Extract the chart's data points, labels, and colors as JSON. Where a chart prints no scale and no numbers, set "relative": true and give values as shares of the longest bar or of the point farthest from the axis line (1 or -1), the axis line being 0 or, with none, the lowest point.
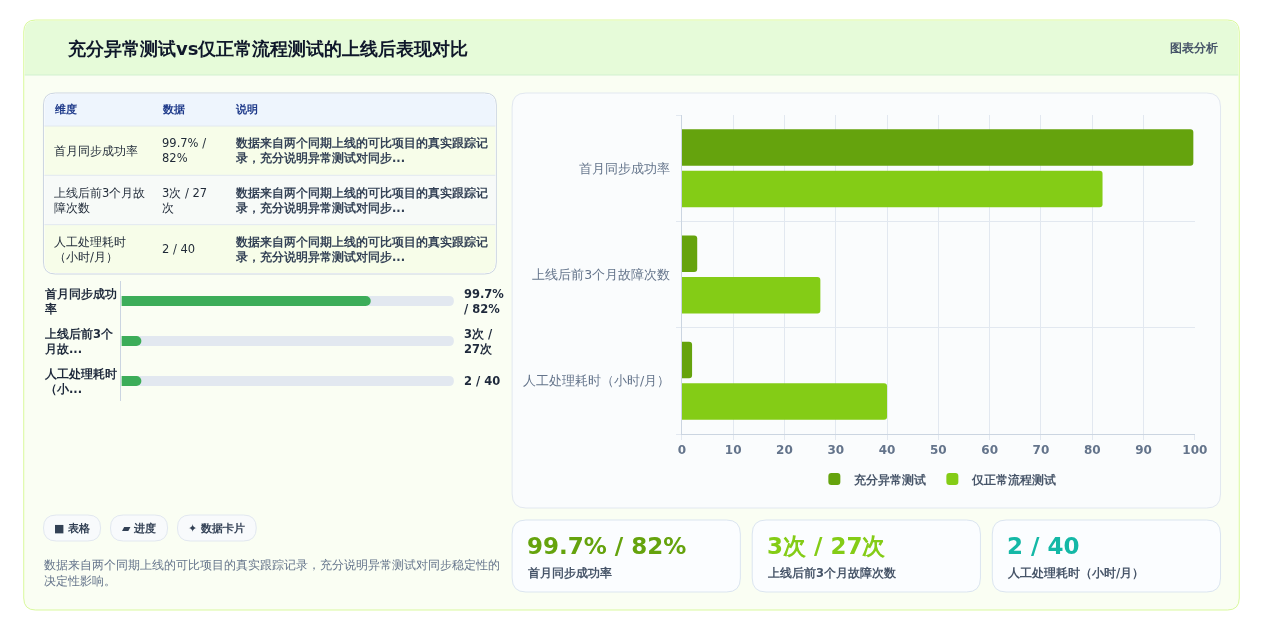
{
  "chart_data": [
    {
      "type": "bar",
      "title": "充分异常测试vs仅正常流程测试的上线后表现对比",
      "subtitle": "图表分析",
      "orientation": "horizontal",
      "categories": [
        "首月同步成功率",
        "上线后前3个月故障次数",
        "人工处理耗时（小时/月）"
      ],
      "series": [
        {
          "name": "充分异常测试",
          "color": "#65a30d",
          "values": [
            99.7,
            3,
            2
          ]
        },
        {
          "name": "仅正常流程测试",
          "color": "#84cc16",
          "values": [
            82,
            27,
            40
          ]
        }
      ],
      "xlim": [
        0,
        100
      ],
      "xticks": [
        0,
        10,
        20,
        30,
        40,
        50,
        60,
        70,
        80,
        90,
        100
      ],
      "grid": true,
      "legend": "bottom"
    },
    {
      "type": "other",
      "annotations": [
        "维度",
        "数据",
        "说明",
        "首月同步成功率",
        "99.7% / 82%",
        "数据来自两个同期上线的可比项目的真实跟踪记录，充分说明异常测试对同步...",
        "上线后前3个月故障次数",
        "3次 / 27次",
        "数据来自两个同期上线的可比项目的真实跟踪记录，充分说明异常测试对同步...",
        "人工处理耗时（小时/月）",
        "2 / 40",
        "数据来自两个同期上线的可比项目的真实跟踪记录，充分说明异常测试对同步..."
      ]
    },
    {
      "type": "bar",
      "orientation": "horizontal",
      "relative": true,
      "categories": [
        "首月同步成功率",
        "上线后前3个月故...",
        "人工处理耗时（小..."
      ],
      "values": [
        1,
        0.08,
        0.08
      ],
      "color": "#3cad59"
    },
    {
      "type": "other",
      "annotations": [
        "99.7% / 82%",
        "3次 / 27次",
        "2 / 40"
      ]
    },
    {
      "type": "other",
      "categories": [
        "■ 表格",
        "▰ 进度",
        "✦ 数据卡片"
      ],
      "annotations": [
        "数据来自两个同期上线的可比项目的真实跟踪记录，充分说明异常测试对同步稳定性的决定性影响。"
      ]
    },
    {
      "type": "other",
      "categories": [
        "首月同步成功率",
        "上线后前3个月故障次数",
        "人工处理耗时（小时/月）"
      ],
      "annotations": [
        "99.7% / 82%",
        "3次 / 27次",
        "2 / 40"
      ]
    }
  ]
}
